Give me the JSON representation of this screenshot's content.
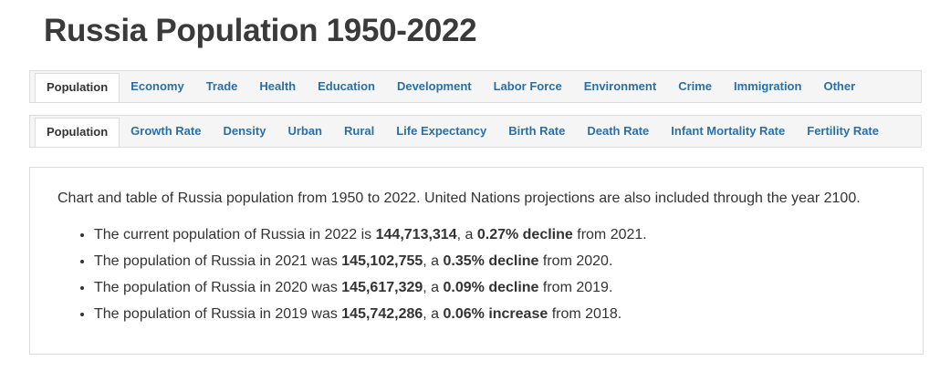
{
  "header": {
    "title": "Russia Population 1950-2022"
  },
  "tabs": [
    {
      "active": 0,
      "items": [
        "Population",
        "Economy",
        "Trade",
        "Health",
        "Education",
        "Development",
        "Labor Force",
        "Environment",
        "Crime",
        "Immigration",
        "Other"
      ]
    },
    {
      "active": 0,
      "items": [
        "Population",
        "Growth Rate",
        "Density",
        "Urban",
        "Rural",
        "Life Expectancy",
        "Birth Rate",
        "Death Rate",
        "Infant Mortality Rate",
        "Fertility Rate"
      ]
    }
  ],
  "content": {
    "intro": "Chart and table of Russia population from 1950 to 2022. United Nations projections are also included through the year 2100.",
    "bullets": [
      [
        {
          "text": "The current population of Russia in 2022 is ",
          "bold": false
        },
        {
          "text": "144,713,314",
          "bold": true
        },
        {
          "text": ", a ",
          "bold": false
        },
        {
          "text": "0.27% decline",
          "bold": true
        },
        {
          "text": " from 2021.",
          "bold": false
        }
      ],
      [
        {
          "text": "The population of Russia in 2021 was ",
          "bold": false
        },
        {
          "text": "145,102,755",
          "bold": true
        },
        {
          "text": ", a ",
          "bold": false
        },
        {
          "text": "0.35% decline",
          "bold": true
        },
        {
          "text": " from 2020.",
          "bold": false
        }
      ],
      [
        {
          "text": "The population of Russia in 2020 was ",
          "bold": false
        },
        {
          "text": "145,617,329",
          "bold": true
        },
        {
          "text": ", a ",
          "bold": false
        },
        {
          "text": "0.09% decline",
          "bold": true
        },
        {
          "text": " from 2019.",
          "bold": false
        }
      ],
      [
        {
          "text": "The population of Russia in 2019 was ",
          "bold": false
        },
        {
          "text": "145,742,286",
          "bold": true
        },
        {
          "text": ", a ",
          "bold": false
        },
        {
          "text": "0.06% increase",
          "bold": true
        },
        {
          "text": " from 2018.",
          "bold": false
        }
      ]
    ]
  }
}
